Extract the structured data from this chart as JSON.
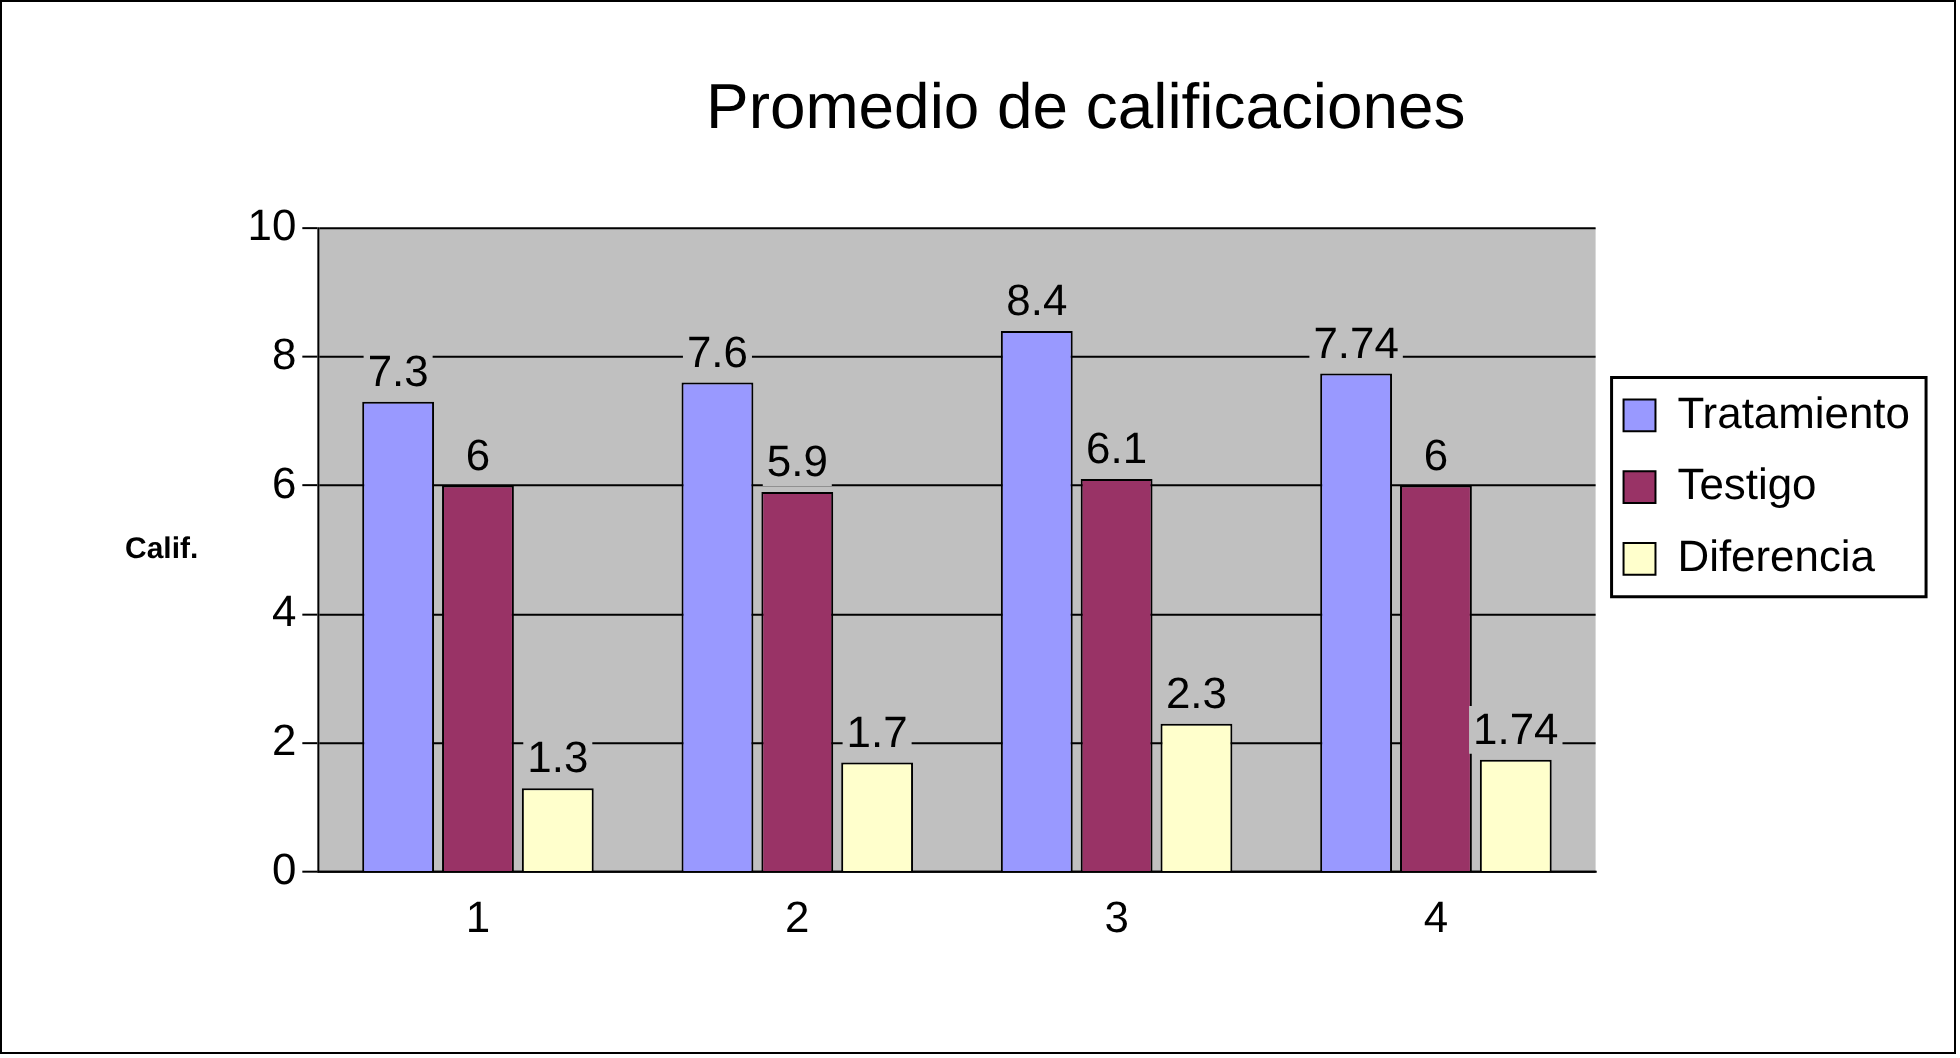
{
  "chart_data": {
    "type": "bar",
    "title": "Promedio de calificaciones",
    "ylabel": "Calif.",
    "categories": [
      "1",
      "2",
      "3",
      "4"
    ],
    "series": [
      {
        "name": "Tratamiento",
        "color": "#9999ff",
        "values": [
          7.3,
          7.6,
          8.4,
          7.74
        ]
      },
      {
        "name": "Testigo",
        "color": "#993366",
        "values": [
          6,
          5.9,
          6.1,
          6
        ]
      },
      {
        "name": "Diferencia",
        "color": "#ffffcc",
        "values": [
          1.3,
          1.7,
          2.3,
          1.74
        ]
      }
    ],
    "ylim": [
      0,
      10
    ],
    "yticks": [
      0,
      2,
      4,
      6,
      8,
      10
    ],
    "grid": "y",
    "legend": "right",
    "data_labels": true
  }
}
